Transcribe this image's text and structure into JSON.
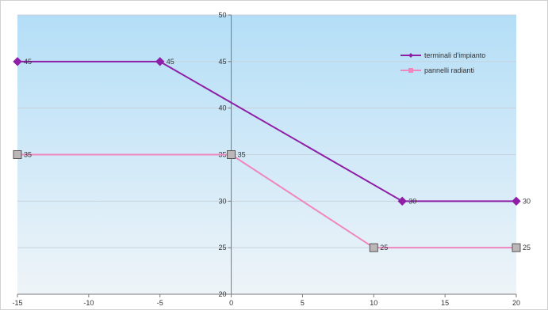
{
  "colors": {
    "plot_top": "#b4def7",
    "plot_bottom": "#eef4f8",
    "grid": "#c8d2dc",
    "axis": "#7a7a7a",
    "series_1": "#8e1fa6",
    "series_2": "#ef86bd",
    "marker_2_fill": "#bdb6b9"
  },
  "chart_data": {
    "type": "line",
    "title": "",
    "xlabel": "",
    "ylabel": "",
    "xlim": [
      -15,
      20
    ],
    "ylim": [
      20,
      50
    ],
    "x_ticks": [
      -15,
      -10,
      -5,
      0,
      5,
      10,
      15,
      20
    ],
    "y_ticks": [
      20,
      25,
      30,
      35,
      40,
      45,
      50
    ],
    "grid": {
      "horizontal": true,
      "vertical": false
    },
    "y_axis_crosses_at_x": 0,
    "legend_position": "top-right",
    "series": [
      {
        "name": "terminali d'impianto",
        "marker": "diamond",
        "points": [
          {
            "x": -15,
            "y": 45,
            "label": "45"
          },
          {
            "x": -5,
            "y": 45,
            "label": "45"
          },
          {
            "x": 12,
            "y": 30,
            "label": "30"
          },
          {
            "x": 20,
            "y": 30,
            "label": "30"
          }
        ]
      },
      {
        "name": "pannelli radianti",
        "marker": "square",
        "points": [
          {
            "x": -15,
            "y": 35,
            "label": "35"
          },
          {
            "x": 0,
            "y": 35,
            "label": "35"
          },
          {
            "x": 10,
            "y": 25,
            "label": "25"
          },
          {
            "x": 20,
            "y": 25,
            "label": "25"
          }
        ]
      }
    ]
  }
}
